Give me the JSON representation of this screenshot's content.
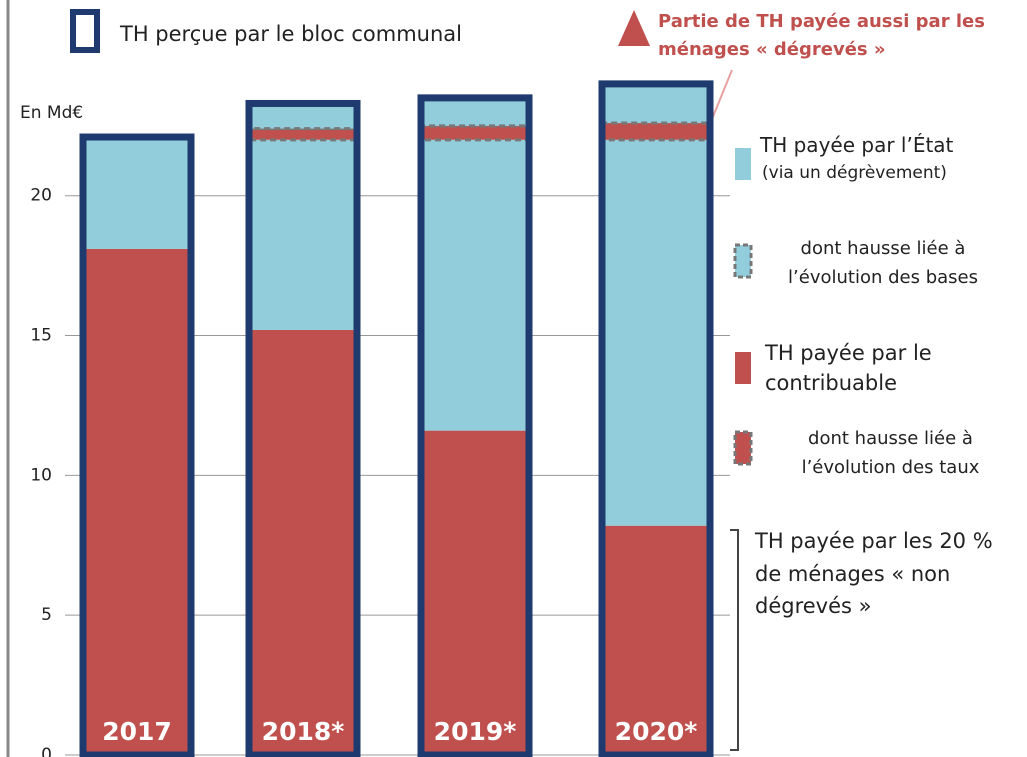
{
  "chart_data": {
    "type": "bar",
    "stacked": true,
    "legend_title": "TH perçue par le bloc communal",
    "y_label": "En Md€",
    "annotation": "Partie de TH payée aussi par les ménages « dégrevés »",
    "bracket_label": "TH payée par les 20 % de ménages « non dégrevés »",
    "categories": [
      "2017",
      "2018*",
      "2019*",
      "2020*"
    ],
    "series": [
      {
        "name": "TH payée par le contribuable",
        "color": "#c0504d",
        "values": [
          18.1,
          15.2,
          11.6,
          8.2
        ]
      },
      {
        "name": "TH payée par l’État",
        "note": "(via un dégrèvement)",
        "color": "#92cddc",
        "values": [
          4.0,
          6.8,
          10.4,
          13.8
        ]
      },
      {
        "name": "dont hausse liée à l’évolution des taux",
        "color": "#c0504d",
        "dashed": true,
        "values": [
          0,
          0.4,
          0.5,
          0.6
        ]
      },
      {
        "name": "dont hausse liée à l’évolution des bases",
        "color": "#92cddc",
        "dashed": true,
        "values": [
          0,
          0.9,
          1.0,
          1.4
        ]
      }
    ],
    "outline_color": "#1f3a6e",
    "ylim": [
      0,
      27
    ],
    "yticks": [
      0,
      5,
      10,
      15,
      20
    ],
    "grid": true
  }
}
